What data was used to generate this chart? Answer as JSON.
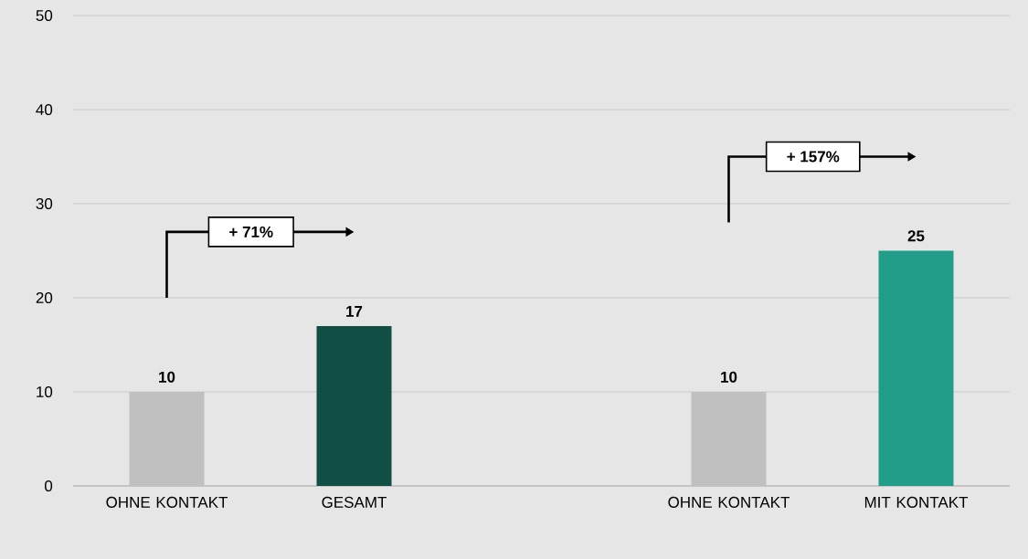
{
  "chart_data": {
    "type": "bar",
    "categories": [
      "OHNE KONTAKT",
      "GESAMT",
      null,
      "OHNE KONTAKT",
      "MIT KONTAKT"
    ],
    "values": [
      10,
      17,
      null,
      10,
      25
    ],
    "colors": [
      "#c0c0c0",
      "#114f44",
      "#c0c0c0",
      "#c0c0c0",
      "#219e8a"
    ],
    "ylim": [
      0,
      50
    ],
    "yticks": [
      0,
      10,
      20,
      30,
      40,
      50
    ],
    "grid": "y",
    "data_labels": true,
    "annotations": [
      "+ 71%",
      "+ 157%"
    ]
  }
}
